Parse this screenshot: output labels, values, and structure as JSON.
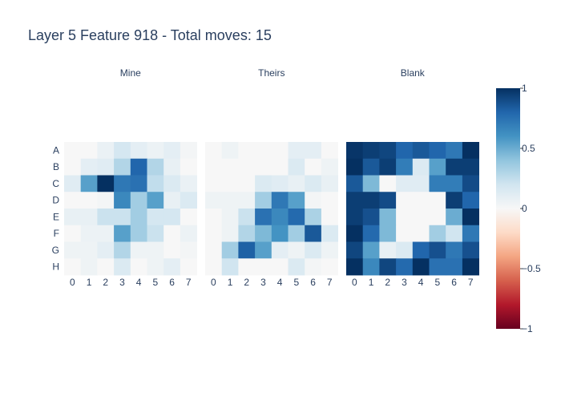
{
  "chart_data": {
    "type": "heatmap",
    "title": "Layer 5 Feature 918 - Total moves: 15",
    "rows": [
      "A",
      "B",
      "C",
      "D",
      "E",
      "F",
      "G",
      "H"
    ],
    "columns": [
      "0",
      "1",
      "2",
      "3",
      "4",
      "5",
      "6",
      "7"
    ],
    "colorbar": {
      "min": -1,
      "max": 1,
      "ticks": [
        {
          "value": 1,
          "label": "1"
        },
        {
          "value": 0.5,
          "label": "0.5"
        },
        {
          "value": 0,
          "label": "0"
        },
        {
          "value": -0.5,
          "label": "−0.5"
        },
        {
          "value": -1,
          "label": "−1"
        }
      ],
      "colorscale": [
        "#67001f",
        "#b2182b",
        "#d6604d",
        "#f4a582",
        "#fddbc7",
        "#f7f7f7",
        "#d1e5f0",
        "#92c5de",
        "#4393c3",
        "#2166ac",
        "#053061"
      ]
    },
    "panels": [
      {
        "name": "Mine",
        "z": [
          [
            0.0,
            0.0,
            0.07,
            0.18,
            0.1,
            0.06,
            0.1,
            0.02
          ],
          [
            0.0,
            0.1,
            0.12,
            0.3,
            0.8,
            0.3,
            0.08,
            0.0
          ],
          [
            0.12,
            0.55,
            1.0,
            0.72,
            0.75,
            0.25,
            0.15,
            0.07
          ],
          [
            0.0,
            0.0,
            0.02,
            0.65,
            0.35,
            0.55,
            0.08,
            0.15
          ],
          [
            0.08,
            0.08,
            0.22,
            0.22,
            0.35,
            0.18,
            0.18,
            0.0
          ],
          [
            0.0,
            0.06,
            0.06,
            0.55,
            0.35,
            0.22,
            0.0,
            0.06
          ],
          [
            0.05,
            0.05,
            0.1,
            0.3,
            0.05,
            0.05,
            0.0,
            0.02
          ],
          [
            0.0,
            0.05,
            0.0,
            0.15,
            0.0,
            0.05,
            0.1,
            0.0
          ]
        ]
      },
      {
        "name": "Theirs",
        "z": [
          [
            0.0,
            0.05,
            0.0,
            0.0,
            0.0,
            0.1,
            0.1,
            0.0
          ],
          [
            0.0,
            0.0,
            0.0,
            0.0,
            0.0,
            0.15,
            0.0,
            0.05
          ],
          [
            0.0,
            0.0,
            0.0,
            0.15,
            0.12,
            0.08,
            0.15,
            0.08
          ],
          [
            0.05,
            0.05,
            0.05,
            0.35,
            0.72,
            0.55,
            0.02,
            0.0
          ],
          [
            0.0,
            0.05,
            0.22,
            0.75,
            0.65,
            0.78,
            0.32,
            0.0
          ],
          [
            0.0,
            0.05,
            0.3,
            0.45,
            0.6,
            0.35,
            0.85,
            0.15
          ],
          [
            0.0,
            0.35,
            0.82,
            0.55,
            0.1,
            0.05,
            0.15,
            0.05
          ],
          [
            0.0,
            0.2,
            0.0,
            0.0,
            0.0,
            0.15,
            0.02,
            0.0
          ]
        ]
      },
      {
        "name": "Blank",
        "z": [
          [
            0.98,
            0.95,
            0.92,
            0.8,
            0.85,
            0.8,
            0.72,
            1.0
          ],
          [
            1.0,
            0.85,
            0.95,
            0.7,
            0.15,
            0.55,
            0.95,
            0.95
          ],
          [
            0.85,
            0.45,
            0.0,
            0.12,
            0.12,
            0.7,
            0.7,
            0.9
          ],
          [
            0.95,
            0.95,
            0.9,
            0.0,
            0.0,
            0.0,
            0.95,
            0.8
          ],
          [
            0.95,
            0.88,
            0.45,
            0.0,
            0.0,
            0.0,
            0.5,
            1.0
          ],
          [
            1.0,
            0.78,
            0.45,
            0.0,
            0.0,
            0.35,
            0.2,
            0.72
          ],
          [
            0.92,
            0.55,
            0.08,
            0.15,
            0.8,
            0.88,
            0.72,
            0.88
          ],
          [
            1.0,
            0.65,
            0.92,
            0.78,
            1.0,
            0.75,
            0.75,
            1.0
          ]
        ]
      }
    ]
  }
}
